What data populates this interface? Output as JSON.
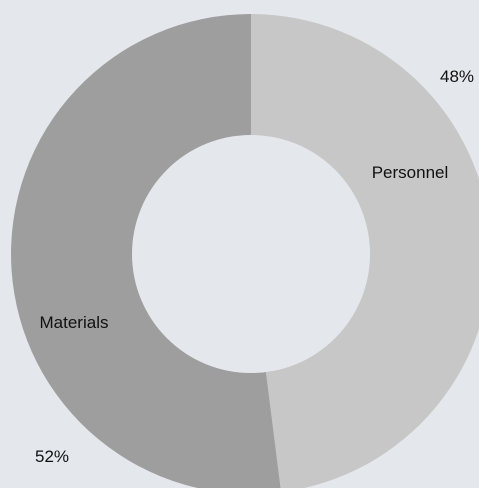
{
  "chart_data": {
    "type": "pie",
    "variant": "donut",
    "title": "",
    "categories": [
      "Personnel",
      "Materials"
    ],
    "values": [
      48,
      52
    ],
    "value_labels": [
      "48%",
      "52%"
    ],
    "colors": [
      "#c6c7c6",
      "#9d9e9d"
    ],
    "legend": "none"
  },
  "colors": {
    "background": "#e4e8ec",
    "hole": "#e4e8ec"
  }
}
